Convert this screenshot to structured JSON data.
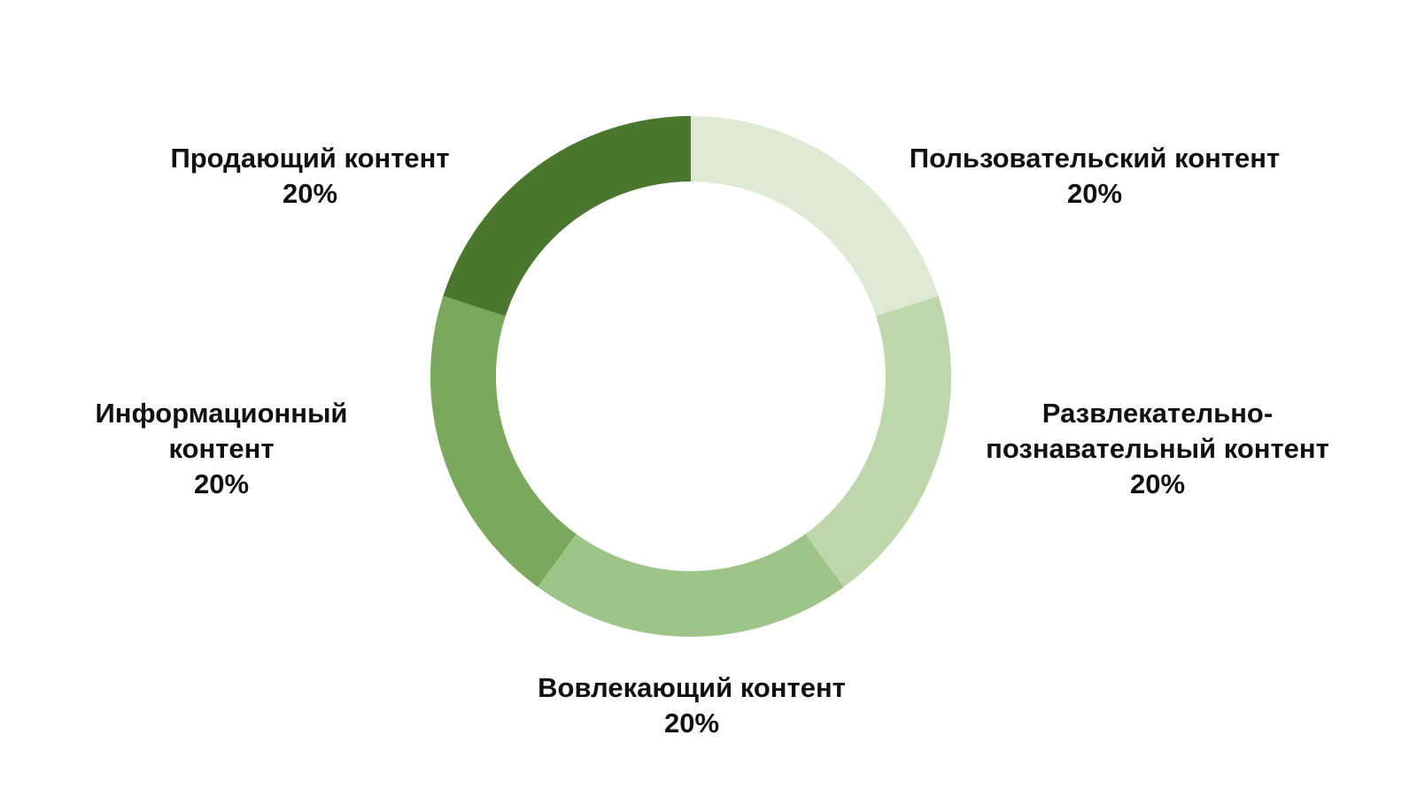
{
  "chart_data": {
    "type": "donut",
    "categories": [
      "Пользовательский контент",
      "Развлекательно-познавательный контент",
      "Вовлекающий контент",
      "Информационный контент",
      "Продающий контент"
    ],
    "values": [
      20,
      20,
      20,
      20,
      20
    ],
    "value_labels": [
      "20%",
      "20%",
      "20%",
      "20%",
      "20%"
    ],
    "colors": [
      "#dde9d3",
      "#bdd7ab",
      "#9fc487",
      "#7aa85c",
      "#4a772d"
    ]
  }
}
